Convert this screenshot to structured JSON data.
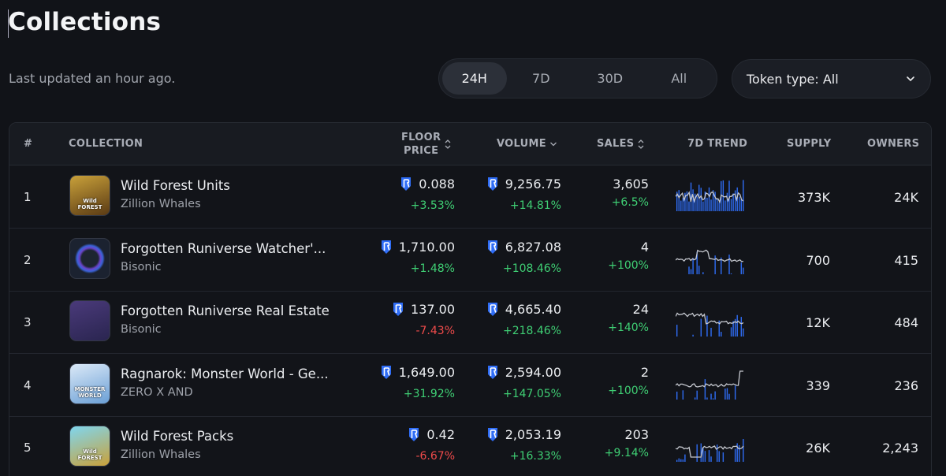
{
  "page": {
    "title": "Collections",
    "updated": "Last updated an hour ago."
  },
  "period_tabs": [
    "24H",
    "7D",
    "30D",
    "All"
  ],
  "active_period": "24H",
  "token_filter": {
    "label": "Token type: All"
  },
  "columns": {
    "rank": "#",
    "collection": "COLLECTION",
    "floor_line1": "FLOOR",
    "floor_line2": "PRICE",
    "volume": "VOLUME",
    "sales": "SALES",
    "trend": "7D TREND",
    "supply": "SUPPLY",
    "owners": "OWNERS"
  },
  "colors": {
    "positive": "#3fcf74",
    "negative": "#ef4b4b",
    "accent": "#2f6df6"
  },
  "rows": [
    {
      "rank": "1",
      "name": "Wild Forest Units",
      "creator": "Zillion Whales",
      "thumb_text": "Wild FOREST",
      "floor": "0.088",
      "floor_change": "+3.53%",
      "floor_dir": "pos",
      "volume": "9,256.75",
      "volume_change": "+14.81%",
      "volume_dir": "pos",
      "sales": "3,605",
      "sales_change": "+6.5%",
      "sales_dir": "pos",
      "supply": "373K",
      "owners": "24K"
    },
    {
      "rank": "2",
      "name": "Forgotten Runiverse Watcher'...",
      "creator": "Bisonic",
      "thumb_text": "",
      "floor": "1,710.00",
      "floor_change": "+1.48%",
      "floor_dir": "pos",
      "volume": "6,827.08",
      "volume_change": "+108.46%",
      "volume_dir": "pos",
      "sales": "4",
      "sales_change": "+100%",
      "sales_dir": "pos",
      "supply": "700",
      "owners": "415"
    },
    {
      "rank": "3",
      "name": "Forgotten Runiverse Real Estate",
      "creator": "Bisonic",
      "thumb_text": "",
      "floor": "137.00",
      "floor_change": "-7.43%",
      "floor_dir": "neg",
      "volume": "4,665.40",
      "volume_change": "+218.46%",
      "volume_dir": "pos",
      "sales": "24",
      "sales_change": "+140%",
      "sales_dir": "pos",
      "supply": "12K",
      "owners": "484"
    },
    {
      "rank": "4",
      "name": "Ragnarok: Monster World - Ge...",
      "creator": "ZERO X AND",
      "thumb_text": "MONSTER WORLD",
      "floor": "1,649.00",
      "floor_change": "+31.92%",
      "floor_dir": "pos",
      "volume": "2,594.00",
      "volume_change": "+147.05%",
      "volume_dir": "pos",
      "sales": "2",
      "sales_change": "+100%",
      "sales_dir": "pos",
      "supply": "339",
      "owners": "236"
    },
    {
      "rank": "5",
      "name": "Wild Forest Packs",
      "creator": "Zillion Whales",
      "thumb_text": "Wild FOREST",
      "floor": "0.42",
      "floor_change": "-6.67%",
      "floor_dir": "neg",
      "volume": "2,053.19",
      "volume_change": "+16.33%",
      "volume_dir": "pos",
      "sales": "203",
      "sales_change": "+9.14%",
      "sales_dir": "pos",
      "supply": "26K",
      "owners": "2,243"
    }
  ]
}
